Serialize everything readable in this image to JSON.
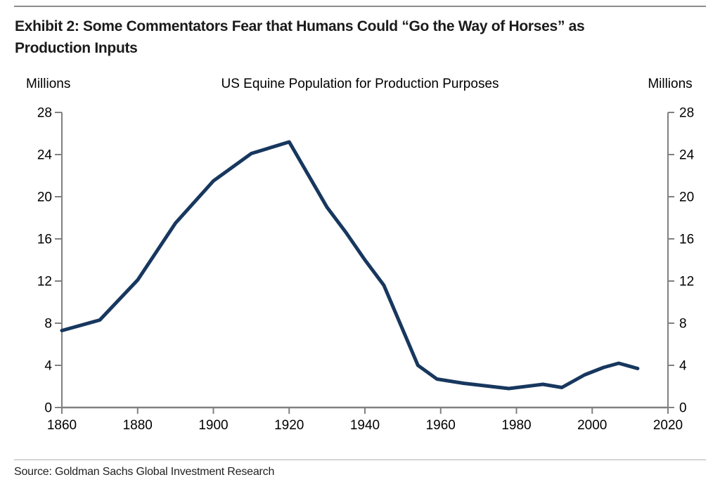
{
  "header": {
    "title_lines": [
      "Exhibit 2: Some Commentators Fear that Humans Could “Go the Way of Horses” as",
      "Production Inputs"
    ]
  },
  "chart": {
    "title": "US Equine Population for Production Purposes",
    "left_axis_unit": "Millions",
    "right_axis_unit": "Millions",
    "line_color": "#17375e",
    "axis_color": "#808080",
    "text_color": "#000000"
  },
  "chart_data": {
    "type": "line",
    "title": "US Equine Population for Production Purposes",
    "xlabel": "",
    "ylabel": "Millions",
    "ylabel_right": "Millions",
    "series": [
      {
        "name": "US equine population (millions)",
        "x": [
          1860,
          1870,
          1880,
          1890,
          1900,
          1910,
          1920,
          1930,
          1935,
          1940,
          1945,
          1954,
          1959,
          1966,
          1978,
          1987,
          1992,
          1998,
          2003,
          2007,
          2012
        ],
        "y": [
          7.3,
          8.3,
          12.1,
          17.5,
          21.5,
          24.1,
          25.2,
          19.0,
          16.6,
          14.0,
          11.6,
          4.0,
          2.7,
          2.3,
          1.8,
          2.2,
          1.9,
          3.1,
          3.8,
          4.2,
          3.7
        ]
      }
    ],
    "xlim": [
      1860,
      2020
    ],
    "ylim": [
      0,
      28
    ],
    "xticks": [
      1860,
      1880,
      1900,
      1920,
      1940,
      1960,
      1980,
      2000,
      2020
    ],
    "yticks": [
      0,
      4,
      8,
      12,
      16,
      20,
      24,
      28
    ],
    "grid": false,
    "legend": "none",
    "dual_y_axis": true
  },
  "footer": {
    "source": "Source: Goldman Sachs Global Investment Research"
  }
}
